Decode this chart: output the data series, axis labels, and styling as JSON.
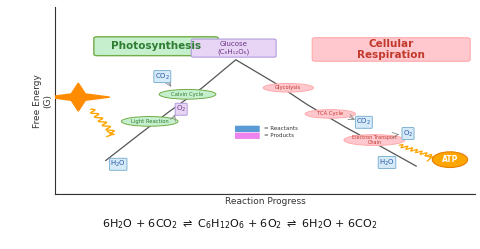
{
  "bg_color": "#ffffff",
  "axis_color": "#333333",
  "ylabel": "Free Energy\n(G)",
  "xlabel": "Reaction Progress",
  "photosynthesis_label": "Photosynthesis",
  "photosynthesis_bg": "#c6efce",
  "photosynthesis_border": "#70ad47",
  "cellular_resp_label": "Cellular\nRespiration",
  "cellular_resp_bg": "#ffc7ce",
  "cellular_resp_border": "#ffaaaa",
  "glucose_label": "Glucose\n(C₆H₁₂O₆)",
  "glucose_bg": "#e8d5f5",
  "glucose_border": "#b39ddb",
  "co2_color_bg": "#d6eaf8",
  "co2_color_ec": "#7fb3d3",
  "o2_color_bg": "#e8d5f5",
  "o2_color_ec": "#b39ddb",
  "h2o_color_bg": "#d6eaf8",
  "h2o_color_ec": "#7fb3d3",
  "atp_label": "ATP",
  "calvin_cycle_label": "Calvin Cycle",
  "light_reaction_label": "Light Reaction",
  "glycolysis_label": "Glycolysis",
  "tca_cycle_label": "TCA Cycle",
  "etc_label": "Electron Transport\nChain",
  "reactants_label": "= Reactants",
  "products_label": "= Products",
  "reactants_color": "#5b9bd5",
  "products_color": "#ee82ee",
  "star_color": "#ff8c00",
  "atp_bg": "#ffa500",
  "atp_ec": "#e67e00",
  "wavy_color": "#ffa500",
  "line_color": "#555555",
  "label_text_blue": "#2255aa",
  "label_text_purple": "#6c3483",
  "green_text": "#2e7d32",
  "red_text": "#c0392b",
  "arrow_color": "#888888"
}
